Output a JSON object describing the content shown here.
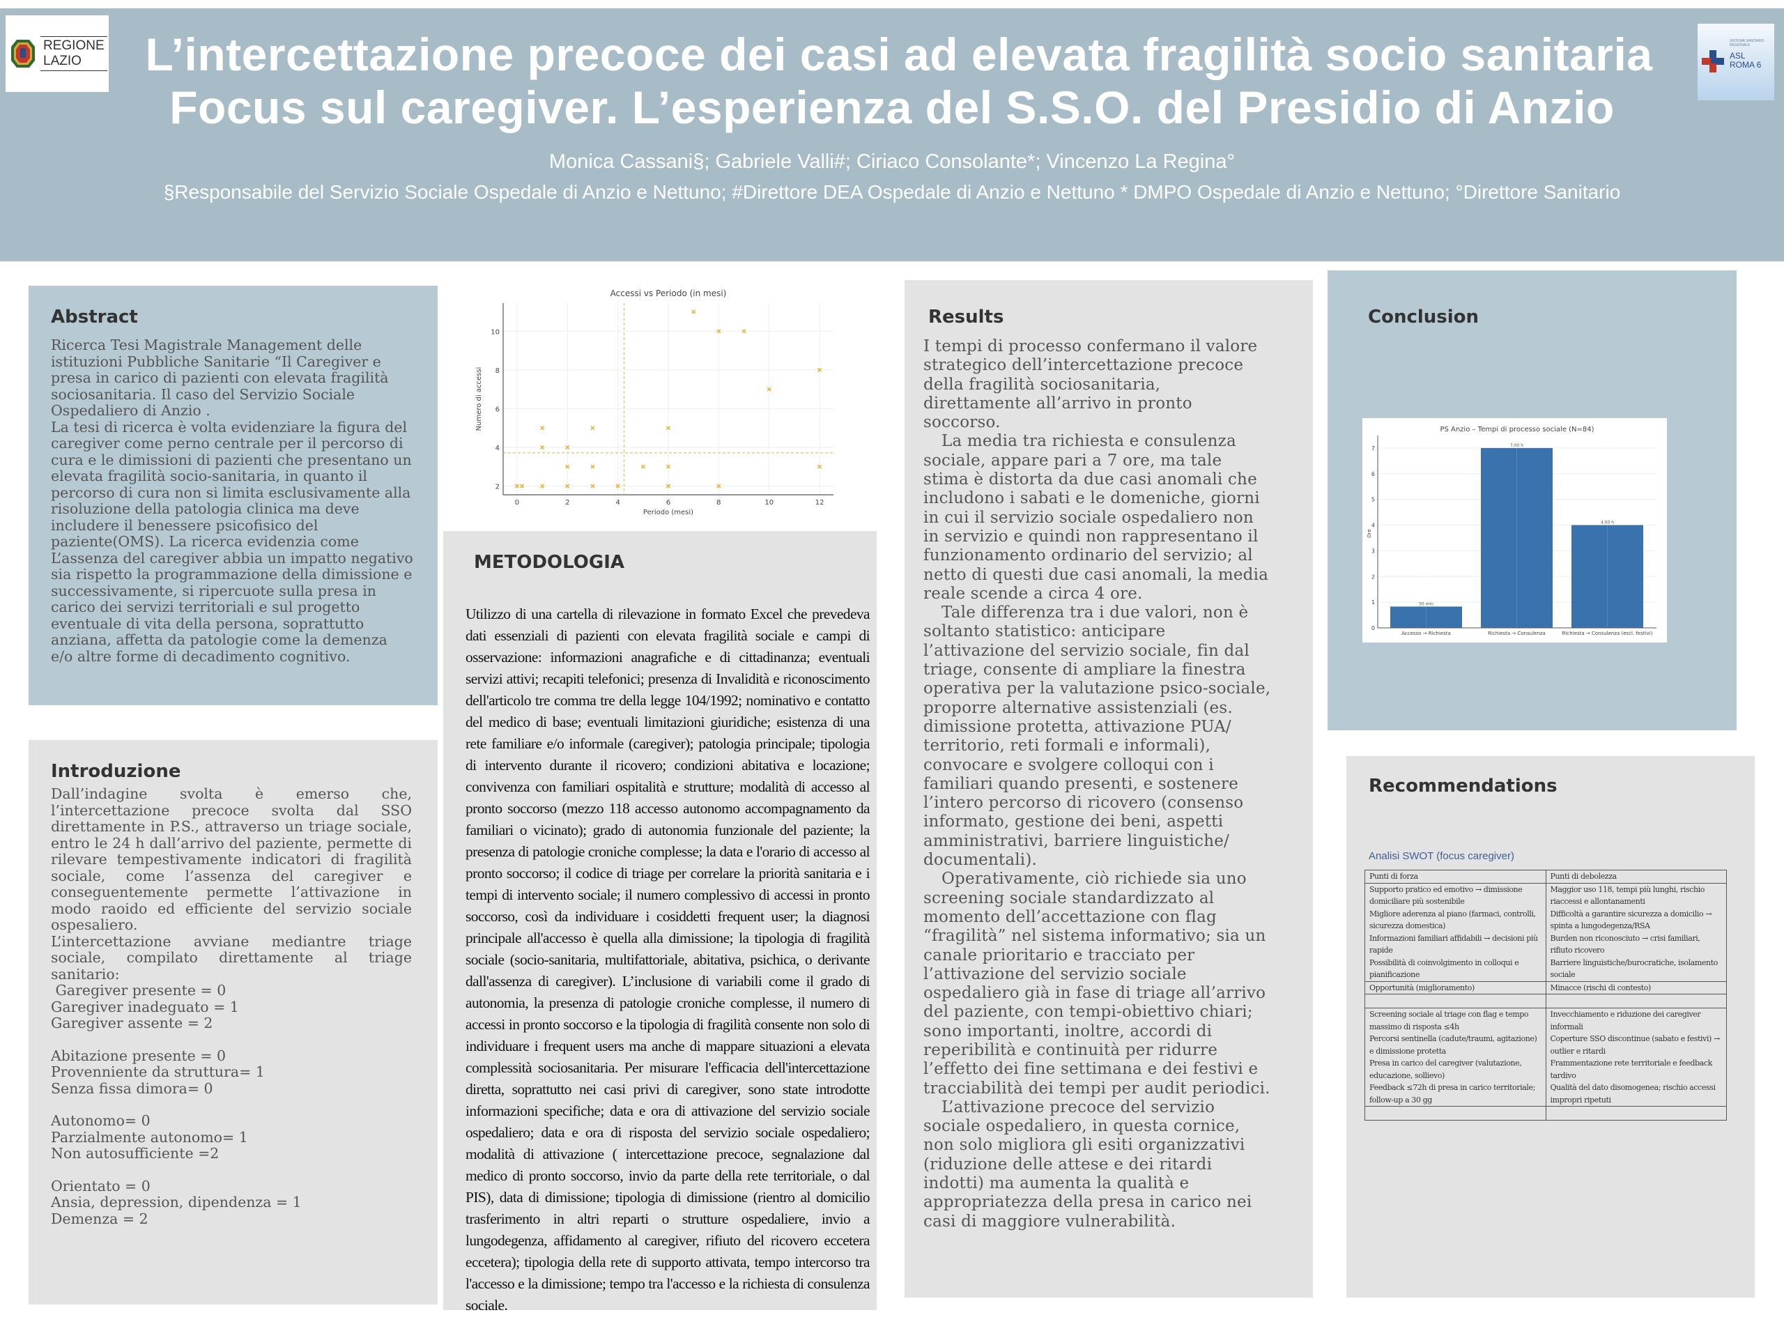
{
  "header": {
    "title_line1": "L’intercettazione precoce dei casi ad elevata fragilità socio sanitaria",
    "title_line2": "Focus sul caregiver. L’esperienza del S.S.O. del Presidio di Anzio",
    "authors": "Monica Cassani§; Gabriele Valli#; Ciriaco Consolante*; Vincenzo La Regina°",
    "affiliations": "§Responsabile del Servizio Sociale Ospedale di Anzio e Nettuno; #Direttore DEA Ospedale di Anzio e Nettuno * DMPO Ospedale di Anzio e Nettuno; °Direttore Sanitario",
    "logo_left": {
      "line1": "REGIONE",
      "line2": "LAZIO"
    },
    "logo_right": {
      "small": "SISTEMA SANITARIO REGIONALE",
      "line1": "ASL",
      "line2": "ROMA 6"
    }
  },
  "colors": {
    "header_bg": "#a7bcc6",
    "blue_panel": "#b7c9d2",
    "grey_panel": "#e3e3e3",
    "scatter_marker": "#e8b53c",
    "bar": "#3a72ad"
  },
  "abstract": {
    "heading": "Abstract",
    "paragraphs": [
      "Ricerca Tesi Magistrale Management delle istituzioni Pubbliche Sanitarie “Il Caregiver e presa in carico di pazienti con elevata fragilità sociosanitaria. Il caso del Servizio Sociale Ospedaliero di Anzio .",
      "La tesi di ricerca è volta evidenziare la figura del caregiver come perno centrale per il percorso di cura e le dimissioni di pazienti che presentano un elevata fragilità socio-sanitaria, in quanto il percorso di cura non si limita esclusivamente alla risoluzione della patologia clinica ma deve includere il benessere psicofisico del paziente(OMS).  La ricerca evidenzia come  L’assenza del caregiver abbia un impatto negativo sia rispetto la programmazione della dimissione e successivamente, si ripercuote sulla presa in carico dei servizi territoriali e sul progetto eventuale di vita della persona, soprattutto anziana, affetta da patologie come la demenza e/o altre forme di decadimento cognitivo."
    ]
  },
  "intro": {
    "heading": "Introduzione",
    "p1": "Dall’indagine svolta è emerso che, l’intercettazione precoce svolta dal SSO direttamente in P.S., attraverso un triage sociale,  entro le 24 h dall’arrivo del paziente, permette di rilevare tempestivamente indicatori di fragilità sociale, come l’assenza del caregiver e conseguentemente permette l’attivazione in modo raoido ed efficiente del servizio sociale ospesaliero.",
    "p2": "L’intercettazione avviane mediantre triage sociale, compilato direttamente al triage sanitario:",
    "groups": [
      [
        " Garegiver presente = 0",
        "Garegiver inadeguato = 1",
        "Garegiver assente = 2"
      ],
      [
        "Abitazione presente = 0",
        "Provenniente da struttura= 1",
        "Senza fissa dimora= 0"
      ],
      [
        "Autonomo= 0",
        "Parzialmente autonomo= 1",
        "Non autosufficiente =2"
      ],
      [
        "Orientato = 0",
        "Ansia, depression, dipendenza = 1",
        "Demenza = 2"
      ]
    ]
  },
  "metodologia": {
    "heading": "METODOLOGIA",
    "text": "Utilizzo di una cartella di rilevazione in formato Excel che prevedeva dati essenziali di pazienti con elevata fragilità sociale e campi di osservazione: informazioni anagrafiche e di cittadinanza; eventuali servizi attivi; recapiti telefonici; presenza di Invalidità e riconoscimento dell'articolo tre comma tre della legge 104/1992;  nominativo e contatto del medico di base; eventuali limitazioni giuridiche; esistenza di una rete familiare e/o informale (caregiver); patologia principale; tipologia di intervento durante il ricovero; condizioni abitativa e locazione; convivenza con familiari ospitalità e strutture; modalità di accesso al pronto soccorso (mezzo 118 accesso autonomo accompagnamento da familiari o vicinato);  grado di autonomia funzionale del paziente; la presenza di patologie croniche complesse; la data e l'orario di accesso al pronto soccorso; il codice di triage per correlare la priorità sanitaria e i tempi di intervento sociale; il numero complessivo di accessi in pronto soccorso, così da individuare i cosiddetti frequent user; la diagnosi principale all'accesso è quella alla dimissione; la tipologia di fragilità sociale (socio-sanitaria, multifattoriale, abitativa, psichica, o derivante dall'assenza di caregiver).     L’inclusione di variabili come il grado di autonomia, la presenza di patologie croniche complesse, il numero di accessi in pronto soccorso e la tipologia di fragilità consente non solo di individuare i frequent users ma anche di mappare situazioni a elevata complessità sociosanitaria. Per misurare l'efficacia dell'intercettazione diretta, soprattutto nei casi privi di caregiver, sono state introdotte informazioni specifiche; data e ora di attivazione del servizio sociale ospedaliero; data e ora di risposta del servizio sociale ospedaliero; modalità di attivazione ( intercettazione precoce, segnalazione dal medico di pronto soccorso, invio da parte della rete territoriale, o dal PIS), data di dimissione; tipologia di dimissione (rientro al domicilio trasferimento in altri reparti o strutture ospedaliere, invio a lungodegenza, affidamento al caregiver, rifiuto del ricovero eccetera eccetera); tipologia della rete di supporto attivata, tempo intercorso tra l'accesso e la dimissione; tempo tra l'accesso e la richiesta di consulenza sociale."
  },
  "results": {
    "heading": "Results",
    "paragraphs": [
      "I tempi di processo confermano il valore strategico dell’intercettazione precoce della fragilità sociosanitaria, direttamente all’arrivo in pronto soccorso.",
      "La media tra richiesta e consulenza sociale, appare pari a 7 ore, ma tale stima è distorta da due casi anomali che includono i sabati e le domeniche, giorni in cui il servizio sociale ospedaliero non in servizio e quindi non rappresentano il funzionamento ordinario del servizio; al netto di questi due casi anomali, la media reale scende a circa 4 ore.",
      "Tale differenza tra i due valori, non è soltanto statistico: anticipare l’attivazione del servizio sociale, fin dal triage, consente di ampliare la finestra operativa per la valutazione psico-sociale, proporre alternative assistenziali (es. dimissione protetta, attivazione PUA/ territorio, reti formali e informali), convocare e svolgere colloqui con i familiari quando presenti, e sostenere l’intero percorso di ricovero (consenso informato, gestione dei beni, aspetti amministrativi, barriere linguistiche/ documentali).",
      "Operativamente, ciò richiede sia uno screening sociale standardizzato al momento dell’accettazione con flag “fragilità” nel sistema informativo; sia un canale prioritario e tracciato per l’attivazione del servizio sociale ospedaliero già in fase di triage all’arrivo del paziente, con tempi-obiettivo chiari; sono importanti, inoltre, accordi di reperibilità e continuità per ridurre l’effetto dei fine settimana e dei festivi e tracciabilità dei tempi per audit periodici.",
      "L’attivazione precoce del servizio sociale ospedaliero, in questa cornice, non solo migliora gli esiti organizzativi (riduzione delle attese e dei ritardi indotti) ma aumenta la qualità e appropriatezza della presa in carico nei casi di maggiore vulnerabilità."
    ]
  },
  "conclusion": {
    "heading": "Conclusion"
  },
  "recommendations": {
    "heading": "Recommendations",
    "swot_title": "Analisi SWOT (focus caregiver)",
    "swot": {
      "strengths_header": "Punti di forza",
      "weaknesses_header": "Punti di debolezza",
      "strengths": [
        "Supporto pratico ed emotivo → dimissione domiciliare più sostenibile",
        "Migliore aderenza al piano (farmaci, controlli, sicurezza domestica)",
        "Informazioni familiari affidabili → decisioni più rapide",
        "Possibilità di coinvolgimento in colloqui e pianificazione"
      ],
      "weaknesses": [
        "Maggior uso 118, tempi più lunghi, rischio riaccessi e allontanamenti",
        "Difficoltà a garantire sicurezza a domicilio → spinta a lungodegenza/RSA",
        "Burden non riconosciuto → crisi familiari, rifiuto ricovero",
        "Barriere linguistiche/burocratiche, isolamento sociale"
      ],
      "opportunities_header": "Opportunità (miglioramento)",
      "threats_header": "Minacce (rischi di contesto)",
      "opportunities": [
        "Screening sociale al triage con flag e tempo massimo di risposta ≤4h",
        "Percorsi sentinella (cadute/traumi, agitazione) e dimissione protetta",
        "Presa in carico del caregiver (valutazione, educazione, sollievo)",
        "Feedback ≤72h di presa in carico territoriale; follow-up a 30 gg"
      ],
      "threats": [
        "Invecchiamento e riduzione dei caregiver informali",
        "Coperture SSO discontinue (sabato e festivi) → outlier e ritardi",
        "Frammentazione rete territoriale e feedback tardivo",
        "Qualità del dato disomogenea; rischio accessi impropri ripetuti"
      ]
    }
  },
  "chart_data": [
    {
      "type": "scatter",
      "title": "Accessi vs Periodo (in mesi)",
      "xlabel": "Periodo (mesi)",
      "ylabel": "Numero di accessi",
      "xlim": [
        -0.55,
        12.55
      ],
      "ylim": [
        1.55,
        11.45
      ],
      "xticks": [
        0,
        2,
        4,
        6,
        8,
        10,
        12
      ],
      "yticks": [
        2,
        4,
        6,
        8,
        10
      ],
      "grid": true,
      "marker": "x",
      "points": [
        [
          0,
          2
        ],
        [
          0.2,
          2
        ],
        [
          1,
          5
        ],
        [
          1,
          4
        ],
        [
          1,
          2
        ],
        [
          2,
          4
        ],
        [
          2,
          3
        ],
        [
          2,
          2
        ],
        [
          3,
          5
        ],
        [
          3,
          3
        ],
        [
          3,
          2
        ],
        [
          4,
          2
        ],
        [
          5,
          3
        ],
        [
          6,
          5
        ],
        [
          6,
          3
        ],
        [
          6,
          2
        ],
        [
          7,
          11
        ],
        [
          8,
          10
        ],
        [
          8,
          2
        ],
        [
          9,
          10
        ],
        [
          10,
          7
        ],
        [
          12,
          8
        ],
        [
          12,
          3
        ]
      ],
      "mean_lines": {
        "x": 4.25,
        "y": 3.72
      }
    },
    {
      "type": "bar",
      "title": "PS Anzio – Tempi di processo sociale (N=84)",
      "xlabel": "",
      "ylabel": "Ore",
      "categories": [
        "Accesso → Richiesta",
        "Richiesta → Consulenza",
        "Richiesta → Consulenza (escl. festivi)"
      ],
      "values": [
        0.83,
        7.0,
        4.0
      ],
      "data_labels": [
        "50 min",
        "7.00 h",
        "4.00 h"
      ],
      "ylim": [
        0,
        7.35
      ],
      "yticks": [
        0,
        1,
        2,
        3,
        4,
        5,
        6,
        7
      ],
      "grid": true
    }
  ]
}
